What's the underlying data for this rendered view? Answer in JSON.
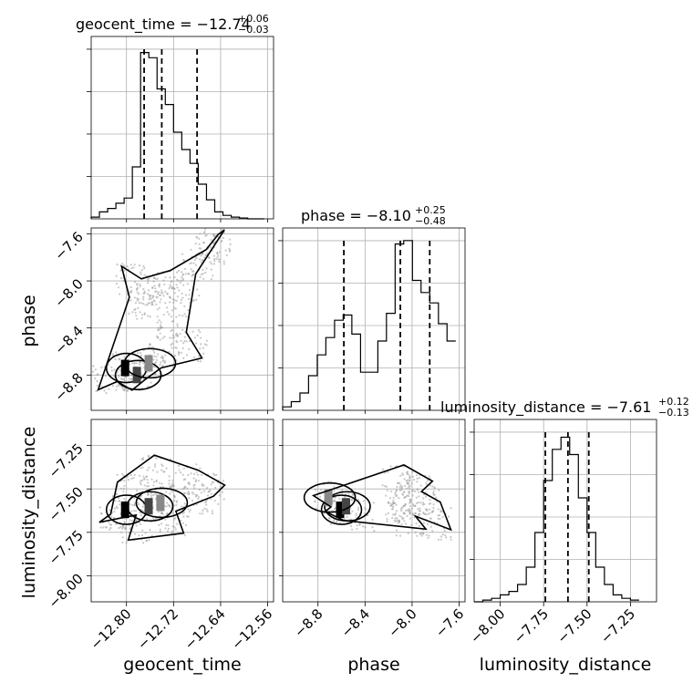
{
  "chart_data": [
    {
      "type": "histogram",
      "panel": "geocent_time",
      "title": {
        "main": "geocent_time = −12.74",
        "sup": "+0.06",
        "sub": "−0.03"
      },
      "xlim": [
        -12.86,
        -12.55
      ],
      "ylim": [
        0,
        1.0
      ],
      "bin_edges": [
        -12.86,
        -12.846,
        -12.832,
        -12.818,
        -12.804,
        -12.79,
        -12.776,
        -12.762,
        -12.748,
        -12.734,
        -12.72,
        -12.706,
        -12.692,
        -12.678,
        -12.664,
        -12.65,
        -12.636,
        -12.622,
        -12.608,
        -12.594,
        -12.58,
        -12.566
      ],
      "counts": [
        0.01,
        0.04,
        0.06,
        0.09,
        0.12,
        0.3,
        0.96,
        0.93,
        0.75,
        0.66,
        0.5,
        0.4,
        0.32,
        0.2,
        0.11,
        0.04,
        0.02,
        0.01,
        0.005,
        0,
        0
      ],
      "quantiles": [
        -12.77,
        -12.74,
        -12.68
      ]
    },
    {
      "type": "scatter+contour",
      "panel": "geocent_time vs phase",
      "xlim": [
        -12.86,
        -12.55
      ],
      "ylim": [
        -9.1,
        -7.55
      ],
      "points": [
        [
          -12.8,
          -8.74
        ],
        [
          -12.78,
          -8.8
        ],
        [
          -12.76,
          -8.7
        ],
        [
          -12.74,
          -8.6
        ],
        [
          -12.72,
          -8.35
        ],
        [
          -12.7,
          -8.05
        ],
        [
          -12.68,
          -7.85
        ],
        [
          -12.66,
          -7.72
        ],
        [
          -12.76,
          -8.1
        ],
        [
          -12.77,
          -8.2
        ],
        [
          -12.79,
          -7.98
        ],
        [
          -12.83,
          -8.82
        ],
        [
          -12.65,
          -7.68
        ],
        [
          -12.69,
          -8.55
        ],
        [
          -12.73,
          -8.05
        ]
      ]
    },
    {
      "type": "scatter+contour",
      "panel": "geocent_time vs luminosity_distance",
      "xlim": [
        -12.86,
        -12.55
      ],
      "ylim": [
        -8.15,
        -7.1
      ],
      "points": [
        [
          -12.8,
          -7.62
        ],
        [
          -12.76,
          -7.6
        ],
        [
          -12.74,
          -7.58
        ],
        [
          -12.72,
          -7.68
        ],
        [
          -12.7,
          -7.45
        ],
        [
          -12.78,
          -7.72
        ],
        [
          -12.82,
          -7.66
        ],
        [
          -12.68,
          -7.55
        ],
        [
          -12.66,
          -7.5
        ],
        [
          -12.75,
          -7.4
        ],
        [
          -12.79,
          -7.5
        ]
      ]
    },
    {
      "type": "histogram",
      "panel": "phase",
      "title": {
        "main": "phase = −8.10",
        "sup": "+0.25",
        "sub": "−0.48"
      },
      "xlim": [
        -9.1,
        -7.55
      ],
      "ylim": [
        0,
        1.0
      ],
      "bin_edges": [
        -9.1,
        -9.027,
        -8.953,
        -8.88,
        -8.806,
        -8.733,
        -8.659,
        -8.586,
        -8.512,
        -8.438,
        -8.365,
        -8.291,
        -8.218,
        -8.144,
        -8.071,
        -7.997,
        -7.924,
        -7.85,
        -7.776,
        -7.703,
        -7.629
      ],
      "counts": [
        0.02,
        0.05,
        0.1,
        0.2,
        0.32,
        0.42,
        0.52,
        0.55,
        0.44,
        0.22,
        0.22,
        0.4,
        0.56,
        0.96,
        0.98,
        0.75,
        0.68,
        0.62,
        0.5,
        0.4
      ],
      "quantiles": [
        -8.58,
        -8.1,
        -7.85
      ]
    },
    {
      "type": "scatter+contour",
      "panel": "phase vs luminosity_distance",
      "xlim": [
        -9.1,
        -7.55
      ],
      "ylim": [
        -8.15,
        -7.1
      ],
      "points": [
        [
          -8.6,
          -7.62
        ],
        [
          -8.55,
          -7.6
        ],
        [
          -8.7,
          -7.55
        ],
        [
          -8.1,
          -7.62
        ],
        [
          -8.05,
          -7.55
        ],
        [
          -8.0,
          -7.68
        ],
        [
          -7.9,
          -7.58
        ],
        [
          -7.8,
          -7.7
        ],
        [
          -8.12,
          -7.45
        ],
        [
          -8.45,
          -7.65
        ],
        [
          -7.95,
          -7.5
        ]
      ]
    },
    {
      "type": "histogram",
      "panel": "luminosity_distance",
      "title": {
        "main": "luminosity_distance = −7.61",
        "sup": "+0.12",
        "sub": "−0.13"
      },
      "xlim": [
        -8.15,
        -7.1
      ],
      "ylim": [
        0,
        1.0
      ],
      "bin_edges": [
        -8.15,
        -8.1,
        -8.05,
        -8.0,
        -7.95,
        -7.9,
        -7.85,
        -7.8,
        -7.75,
        -7.7,
        -7.65,
        -7.6,
        -7.55,
        -7.5,
        -7.45,
        -7.4,
        -7.35,
        -7.3,
        -7.25,
        -7.2
      ],
      "counts": [
        0,
        0.01,
        0.02,
        0.04,
        0.06,
        0.1,
        0.2,
        0.4,
        0.7,
        0.88,
        0.95,
        0.85,
        0.6,
        0.4,
        0.2,
        0.1,
        0.04,
        0.02,
        0.01
      ],
      "quantiles": [
        -7.74,
        -7.61,
        -7.49
      ]
    }
  ],
  "axes": {
    "xlabels": [
      "geocent_time",
      "phase",
      "luminosity_distance"
    ],
    "ylabels": [
      "phase",
      "luminosity_distance"
    ],
    "xticks": {
      "geocent_time": {
        "values": [
          -12.8,
          -12.72,
          -12.64,
          -12.56
        ],
        "labels": [
          "−12.80",
          "−12.72",
          "−12.64",
          "−12.56"
        ]
      },
      "phase": {
        "values": [
          -8.8,
          -8.4,
          -8.0,
          -7.6
        ],
        "labels": [
          "−8.8",
          "−8.4",
          "−8.0",
          "−7.6"
        ]
      },
      "luminosity_distance": {
        "values": [
          -8.0,
          -7.75,
          -7.5,
          -7.25
        ],
        "labels": [
          "−8.00",
          "−7.75",
          "−7.50",
          "−7.25"
        ]
      }
    },
    "yticks": {
      "phase": {
        "values": [
          -7.6,
          -8.0,
          -8.4,
          -8.8
        ],
        "labels": [
          "−7.6",
          "−8.0",
          "−8.4",
          "−8.8"
        ]
      },
      "luminosity_distance": {
        "values": [
          -7.25,
          -7.5,
          -7.75,
          -8.0
        ],
        "labels": [
          "−7.25",
          "−7.50",
          "−7.75",
          "−8.00"
        ]
      }
    },
    "grid": true
  }
}
